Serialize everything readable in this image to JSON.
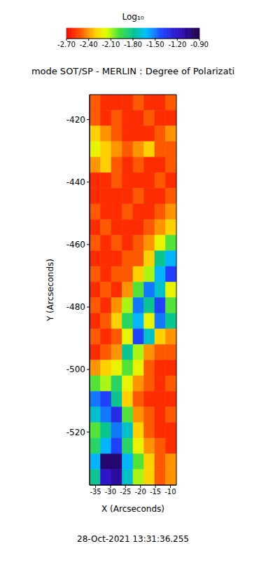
{
  "chart_data": {
    "type": "heatmap",
    "title": "mode SOT/SP - MERLIN : Degree of Polarizati",
    "annotation": "28-Oct-2021 13:31:36.255",
    "x_label": "X (Arcseconds)",
    "y_label": "Y (Arcseconds)",
    "xlim": [
      -37,
      -8
    ],
    "xticks": [
      -35,
      -30,
      -25,
      -20,
      -15,
      -10
    ],
    "ylim": [
      -537,
      -412
    ],
    "yticks": [
      -520,
      -500,
      -480,
      -460,
      -440,
      -420
    ],
    "x_edges": [
      -37,
      -33.375,
      -29.75,
      -26.125,
      -22.5,
      -18.875,
      -15.25,
      -11.625,
      -8
    ],
    "y_edges": [
      -412,
      -417,
      -422,
      -427,
      -432,
      -437,
      -442,
      -447,
      -452,
      -457,
      -462,
      -467,
      -472,
      -477,
      -482,
      -487,
      -492,
      -497,
      -502,
      -507,
      -512,
      -517,
      -522,
      -527,
      -532,
      -537
    ],
    "cells": [
      [
        -2.5,
        -2.6,
        -2.6,
        -2.6,
        -2.5,
        -2.6,
        -2.6,
        -2.5
      ],
      [
        -2.5,
        -2.6,
        -2.5,
        -2.6,
        -2.6,
        -2.5,
        -2.6,
        -2.6
      ],
      [
        -2.3,
        -2.4,
        -2.5,
        -2.6,
        -2.6,
        -2.6,
        -2.5,
        -2.4
      ],
      [
        -2.2,
        -2.3,
        -2.4,
        -2.5,
        -2.4,
        -2.3,
        -2.5,
        -2.5
      ],
      [
        -2.4,
        -2.3,
        -2.5,
        -2.6,
        -2.5,
        -2.6,
        -2.6,
        -2.5
      ],
      [
        -2.6,
        -2.6,
        -2.5,
        -2.6,
        -2.6,
        -2.6,
        -2.5,
        -2.6
      ],
      [
        -2.6,
        -2.6,
        -2.6,
        -2.6,
        -2.5,
        -2.6,
        -2.6,
        -2.5
      ],
      [
        -2.5,
        -2.6,
        -2.6,
        -2.5,
        -2.6,
        -2.6,
        -2.5,
        -2.4
      ],
      [
        -2.6,
        -2.5,
        -2.6,
        -2.6,
        -2.6,
        -2.5,
        -2.4,
        -2.3
      ],
      [
        -2.5,
        -2.6,
        -2.5,
        -2.6,
        -2.5,
        -2.4,
        -2.2,
        -2.0
      ],
      [
        -2.6,
        -2.6,
        -2.6,
        -2.5,
        -2.5,
        -2.3,
        -1.8,
        -1.6
      ],
      [
        -2.5,
        -2.6,
        -2.5,
        -2.5,
        -2.3,
        -2.1,
        -1.6,
        -1.4
      ],
      [
        -2.6,
        -2.5,
        -2.6,
        -2.4,
        -2.0,
        -1.5,
        -1.7,
        -2.2
      ],
      [
        -2.5,
        -2.6,
        -2.4,
        -2.1,
        -1.5,
        -1.8,
        -1.4,
        -2.0
      ],
      [
        -2.6,
        -2.5,
        -2.3,
        -1.9,
        -1.6,
        -2.2,
        -1.5,
        -1.8
      ],
      [
        -2.5,
        -2.6,
        -2.5,
        -2.2,
        -1.4,
        -1.7,
        -2.3,
        -2.4
      ],
      [
        -2.6,
        -2.5,
        -2.4,
        -1.8,
        -2.1,
        -2.4,
        -2.5,
        -2.5
      ],
      [
        -2.4,
        -2.3,
        -2.2,
        -2.0,
        -2.2,
        -2.5,
        -2.6,
        -2.6
      ],
      [
        -2.0,
        -2.1,
        -1.9,
        -2.2,
        -2.4,
        -2.5,
        -2.6,
        -2.5
      ],
      [
        -1.5,
        -1.4,
        -1.8,
        -2.3,
        -2.5,
        -2.6,
        -2.6,
        -2.6
      ],
      [
        -1.7,
        -1.5,
        -1.3,
        -2.0,
        -2.4,
        -2.5,
        -2.6,
        -2.5
      ],
      [
        -2.0,
        -1.8,
        -1.5,
        -1.7,
        -2.3,
        -2.5,
        -2.6,
        -2.6
      ],
      [
        -1.9,
        -1.6,
        -1.4,
        -1.9,
        -2.2,
        -2.4,
        -2.5,
        -2.6
      ],
      [
        -1.6,
        -1.0,
        -1.0,
        -1.6,
        -2.0,
        -2.3,
        -2.5,
        -2.4
      ],
      [
        -1.8,
        -1.2,
        -1.1,
        -1.7,
        -2.1,
        -2.3,
        -2.5,
        -2.4
      ]
    ],
    "colorbar_title": "Log₁₀",
    "colorbar_range": [
      -2.7,
      -0.9
    ],
    "colorbar_ticks": [
      {
        "value": -2.7,
        "label": "-2.70"
      },
      {
        "value": -2.4,
        "label": "-2.40"
      },
      {
        "value": -2.1,
        "label": "-2.10"
      },
      {
        "value": -1.8,
        "label": "-1.80"
      },
      {
        "value": -1.5,
        "label": "-1.50"
      },
      {
        "value": -1.2,
        "label": "-1.20"
      },
      {
        "value": -0.9,
        "label": "-0.90"
      }
    ]
  }
}
